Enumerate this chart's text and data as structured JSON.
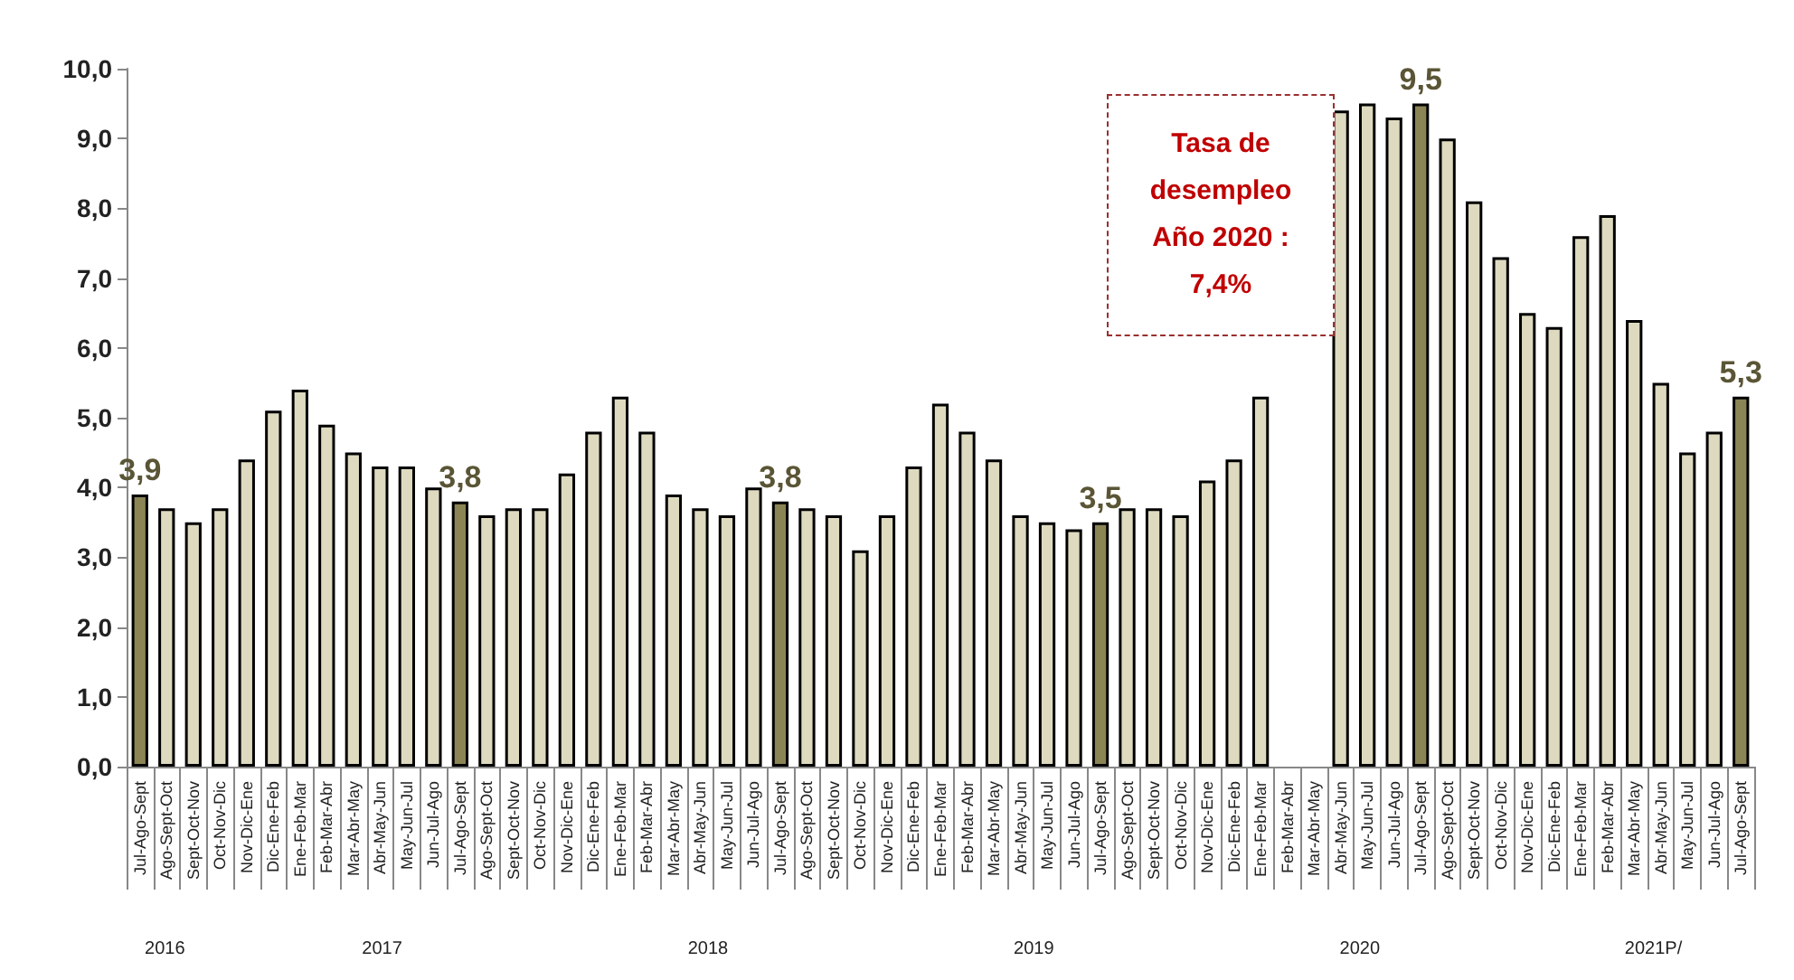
{
  "chart_data": {
    "type": "bar",
    "categories": [
      "Jul-Ago-Sept",
      "Ago-Sept-Oct",
      "Sept-Oct-Nov",
      "Oct-Nov-Dic",
      "Nov-Dic-Ene",
      "Dic-Ene-Feb",
      "Ene-Feb-Mar",
      "Feb-Mar-Abr",
      "Mar-Abr-May",
      "Abr-May-Jun",
      "May-Jun-Jul",
      "Jun-Jul-Ago",
      "Jul-Ago-Sept",
      "Ago-Sept-Oct",
      "Sept-Oct-Nov",
      "Oct-Nov-Dic",
      "Nov-Dic-Ene",
      "Dic-Ene-Feb",
      "Ene-Feb-Mar",
      "Feb-Mar-Abr",
      "Mar-Abr-May",
      "Abr-May-Jun",
      "May-Jun-Jul",
      "Jun-Jul-Ago",
      "Jul-Ago-Sept",
      "Ago-Sept-Oct",
      "Sept-Oct-Nov",
      "Oct-Nov-Dic",
      "Nov-Dic-Ene",
      "Dic-Ene-Feb",
      "Ene-Feb-Mar",
      "Feb-Mar-Abr",
      "Mar-Abr-May",
      "Abr-May-Jun",
      "May-Jun-Jul",
      "Jun-Jul-Ago",
      "Jul-Ago-Sept",
      "Ago-Sept-Oct",
      "Sept-Oct-Nov",
      "Oct-Nov-Dic",
      "Nov-Dic-Ene",
      "Dic-Ene-Feb",
      "Ene-Feb-Mar",
      "Feb-Mar-Abr",
      "Mar-Abr-May",
      "Abr-May-Jun",
      "May-Jun-Jul",
      "Jun-Jul-Ago",
      "Jul-Ago-Sept",
      "Ago-Sept-Oct",
      "Sept-Oct-Nov",
      "Oct-Nov-Dic",
      "Nov-Dic-Ene",
      "Dic-Ene-Feb",
      "Ene-Feb-Mar",
      "Feb-Mar-Abr",
      "Mar-Abr-May",
      "Abr-May-Jun",
      "May-Jun-Jul",
      "Jun-Jul-Ago",
      "Jul-Ago-Sept"
    ],
    "values": [
      3.9,
      3.7,
      3.5,
      3.7,
      4.4,
      5.1,
      5.4,
      4.9,
      4.5,
      4.3,
      4.3,
      4.0,
      3.8,
      3.6,
      3.7,
      3.7,
      4.2,
      4.8,
      5.3,
      4.8,
      3.9,
      3.7,
      3.6,
      4.0,
      3.8,
      3.7,
      3.6,
      3.1,
      3.6,
      4.3,
      5.2,
      4.8,
      4.4,
      3.6,
      3.5,
      3.4,
      3.5,
      3.7,
      3.7,
      3.6,
      4.1,
      4.4,
      5.3,
      null,
      null,
      9.4,
      9.5,
      9.3,
      9.5,
      9.0,
      8.1,
      7.3,
      6.5,
      6.3,
      7.6,
      7.9,
      6.4,
      5.5,
      4.5,
      4.8,
      5.3
    ],
    "colors": [
      "#8b8455",
      "#dedac0",
      "#dedac0",
      "#dedac0",
      "#dedac0",
      "#dedac0",
      "#dedac0",
      "#dedac0",
      "#dedac0",
      "#dedac0",
      "#dedac0",
      "#dedac0",
      "#8b8455",
      "#dedac0",
      "#dedac0",
      "#dedac0",
      "#dedac0",
      "#dedac0",
      "#dedac0",
      "#dedac0",
      "#dedac0",
      "#dedac0",
      "#dedac0",
      "#dedac0",
      "#8b8455",
      "#dedac0",
      "#dedac0",
      "#dedac0",
      "#dedac0",
      "#dedac0",
      "#dedac0",
      "#dedac0",
      "#dedac0",
      "#dedac0",
      "#dedac0",
      "#dedac0",
      "#8b8455",
      "#dedac0",
      "#dedac0",
      "#dedac0",
      "#dedac0",
      "#dedac0",
      "#dedac0",
      "#dedac0",
      "#dedac0",
      "#dedac0",
      "#dedac0",
      "#dedac0",
      "#8b8455",
      "#dedac0",
      "#dedac0",
      "#dedac0",
      "#dedac0",
      "#dedac0",
      "#dedac0",
      "#dedac0",
      "#dedac0",
      "#dedac0",
      "#dedac0",
      "#dedac0",
      "#8b8455"
    ],
    "value_labels": [
      "3,9",
      null,
      null,
      null,
      null,
      null,
      null,
      null,
      null,
      null,
      null,
      null,
      "3,8",
      null,
      null,
      null,
      null,
      null,
      null,
      null,
      null,
      null,
      null,
      null,
      "3,8",
      null,
      null,
      null,
      null,
      null,
      null,
      null,
      null,
      null,
      null,
      null,
      "3,5",
      null,
      null,
      null,
      null,
      null,
      null,
      null,
      null,
      null,
      null,
      null,
      "9,5",
      null,
      null,
      null,
      null,
      null,
      null,
      null,
      null,
      null,
      null,
      null,
      "5,3"
    ],
    "ylim": [
      0,
      10
    ],
    "yticks": [
      {
        "value": 0,
        "label": "0,0"
      },
      {
        "value": 1,
        "label": "1,0"
      },
      {
        "value": 2,
        "label": "2,0"
      },
      {
        "value": 3,
        "label": "3,0"
      },
      {
        "value": 4,
        "label": "4,0"
      },
      {
        "value": 5,
        "label": "5,0"
      },
      {
        "value": 6,
        "label": "6,0"
      },
      {
        "value": 7,
        "label": "7,0"
      },
      {
        "value": 8,
        "label": "8,0"
      },
      {
        "value": 9,
        "label": "9,0"
      },
      {
        "value": 10,
        "label": "10,0"
      }
    ],
    "annotations": [
      "Tasa de\ndesempleo\nAño 2020 :\n7,4%",
      "2016",
      "2017",
      "2018",
      "2019",
      "2020",
      "2021P/"
    ],
    "grid": false
  }
}
